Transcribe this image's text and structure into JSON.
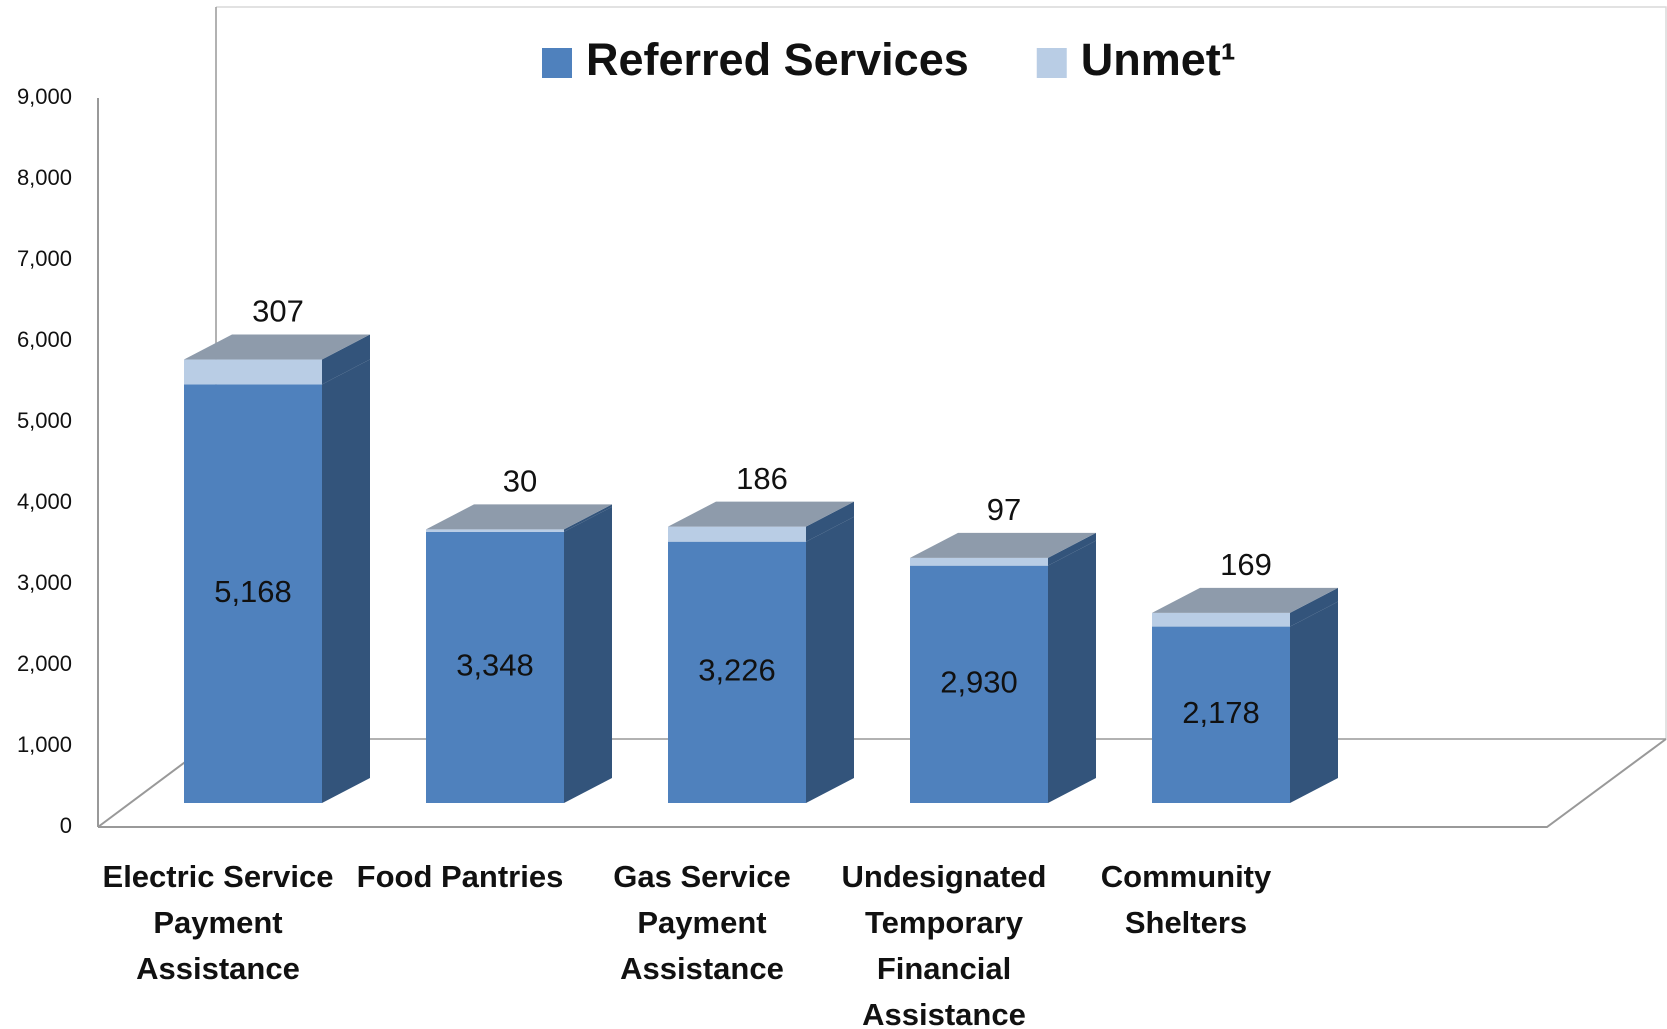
{
  "chart_data": {
    "type": "stacked_bar_3d",
    "categories": [
      "Electric Service Payment Assistance",
      "Food Pantries",
      "Gas Service Payment Assistance",
      "Undesignated Temporary Financial Assistance",
      "Community Shelters"
    ],
    "series": [
      {
        "name": "Referred Services",
        "color": "#4f81bd",
        "values": [
          5168,
          3348,
          3226,
          2930,
          2178
        ],
        "value_labels": [
          "5,168",
          "3,348",
          "3,226",
          "2,930",
          "2,178"
        ]
      },
      {
        "name": "Unmet¹",
        "color": "#b9cde5",
        "values": [
          307,
          30,
          186,
          97,
          169
        ]
      }
    ],
    "ylim": [
      0,
      9000
    ],
    "yticks": [
      0,
      {
        "value": 1000,
        "label": "1,000"
      },
      {
        "value": 2000,
        "label": "2,000"
      },
      {
        "value": 3000,
        "label": "3,000"
      },
      {
        "value": 4000,
        "label": "4,000"
      },
      {
        "value": 5000,
        "label": "5,000"
      },
      {
        "value": 6000,
        "label": "6,000"
      },
      {
        "value": 7000,
        "label": "7,000"
      },
      {
        "value": 8000,
        "label": "8,000"
      },
      {
        "value": 9000,
        "label": "9,000"
      }
    ],
    "legend": "top"
  }
}
